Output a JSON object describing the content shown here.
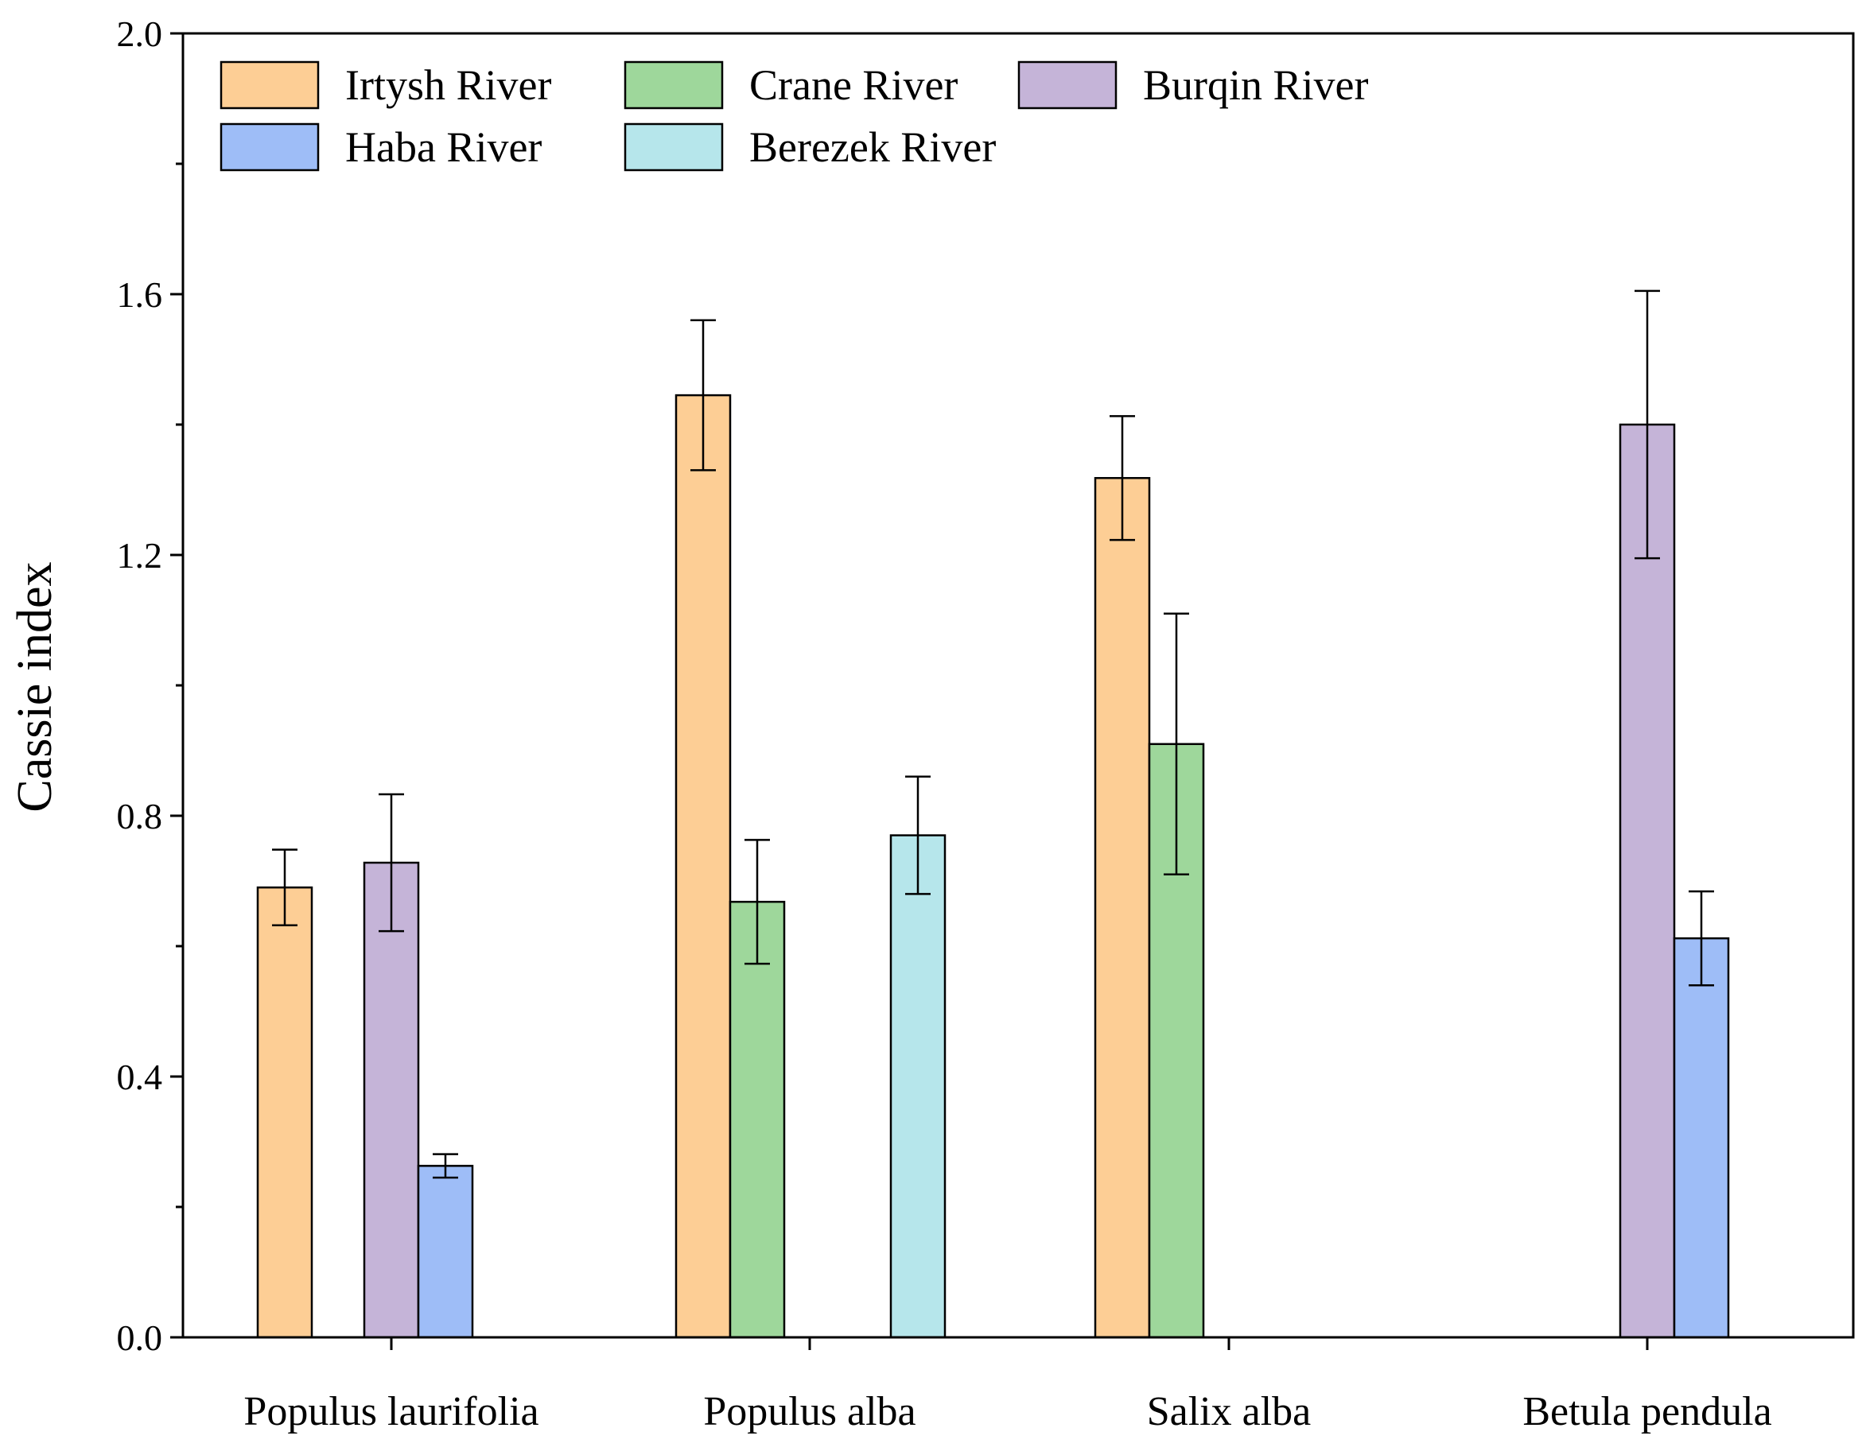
{
  "chart_data": {
    "type": "bar",
    "title": "",
    "xlabel": "",
    "ylabel": "Cassie index",
    "ylim": [
      0,
      2.0
    ],
    "yticks": [
      "0.0",
      "0.4",
      "0.8",
      "1.2",
      "1.6",
      "2.0"
    ],
    "categories": [
      "Populus laurifolia",
      "Populus alba",
      "Salix alba",
      "Betula pendula"
    ],
    "series": [
      {
        "name": "Irtysh River",
        "color": "#FDCE95",
        "values": [
          0.69,
          1.445,
          1.318,
          null
        ],
        "errors": [
          0.058,
          0.115,
          0.095,
          null
        ]
      },
      {
        "name": "Crane River",
        "color": "#9ED79B",
        "values": [
          null,
          0.668,
          0.91,
          null
        ],
        "errors": [
          null,
          0.095,
          0.2,
          null
        ]
      },
      {
        "name": "Burqin River",
        "color": "#C5B4D8",
        "values": [
          0.728,
          null,
          null,
          1.4
        ],
        "errors": [
          0.105,
          null,
          null,
          0.205
        ]
      },
      {
        "name": "Haba River",
        "color": "#9EBDF7",
        "values": [
          0.263,
          null,
          null,
          0.612
        ],
        "errors": [
          0.018,
          null,
          null,
          0.072
        ]
      },
      {
        "name": "Berezek River",
        "color": "#B6E6EB",
        "values": [
          null,
          0.77,
          null,
          null
        ],
        "errors": [
          null,
          0.09,
          null,
          null
        ]
      }
    ],
    "legend": "top-left, 3 columns",
    "grid": false
  }
}
